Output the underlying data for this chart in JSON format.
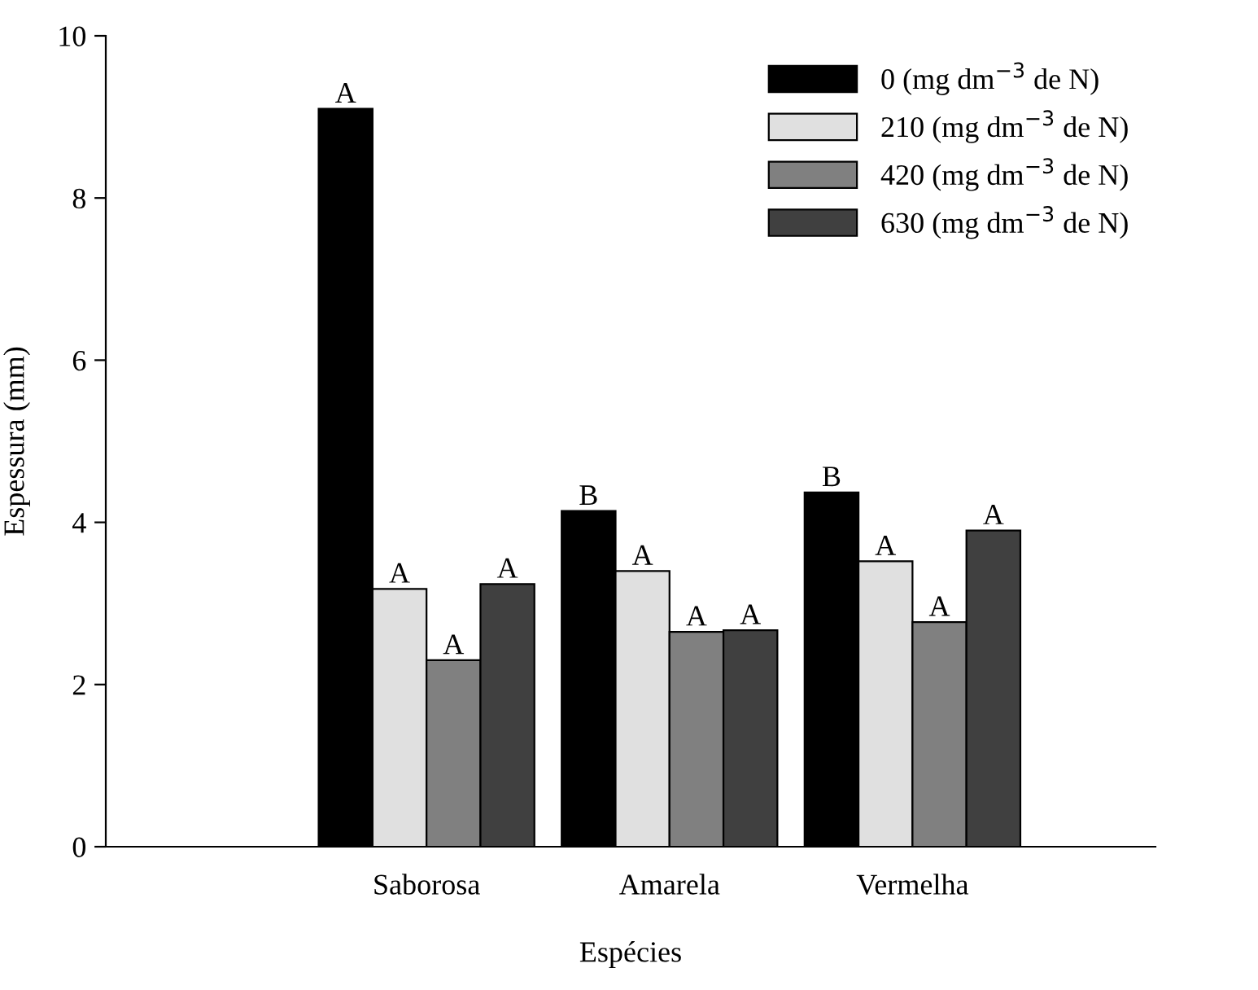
{
  "chart_data": {
    "type": "bar",
    "xlabel": "Espécies",
    "ylabel": "Espessura (mm)",
    "categories": [
      "Saborosa",
      "Amarela",
      "Vermelha"
    ],
    "series": [
      {
        "name": "0 (mg dm$^{−3}$ de N)",
        "color": "#000000",
        "values": [
          9.1,
          4.14,
          4.37
        ],
        "value_labels": [
          "A",
          "B",
          "B"
        ]
      },
      {
        "name": "210 (mg dm$^{−3}$ de N)",
        "color": "#e0e0e0",
        "values": [
          3.18,
          3.4,
          3.52
        ],
        "value_labels": [
          "A",
          "A",
          "A"
        ]
      },
      {
        "name": "420 (mg dm$^{−3}$ de N)",
        "color": "#808080",
        "values": [
          2.3,
          2.65,
          2.77
        ],
        "value_labels": [
          "A",
          "A",
          "A"
        ]
      },
      {
        "name": "630 (mg dm$^{−3}$ de N)",
        "color": "#404040",
        "values": [
          3.24,
          2.67,
          3.9
        ],
        "value_labels": [
          "A",
          "A",
          "A"
        ]
      }
    ],
    "ylim": [
      0,
      10
    ],
    "yticks": [
      0,
      2,
      4,
      6,
      8,
      10
    ],
    "grid": false,
    "legend": "top right"
  }
}
